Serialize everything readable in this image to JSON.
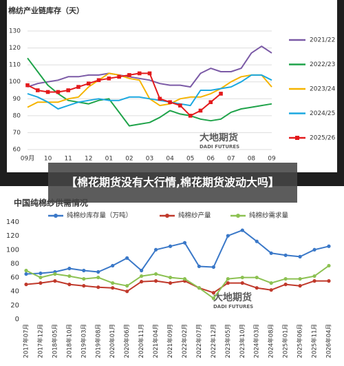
{
  "caption": "【棉花期货没有大行情,棉花期货波动大吗】",
  "chart_data": [
    {
      "type": "line",
      "title": "棉纺产业链库存（天）",
      "categories": [
        "09月",
        null,
        "10",
        null,
        "11",
        null,
        "12",
        null,
        "01",
        null,
        "02",
        null,
        "03",
        null,
        "04",
        null,
        "05",
        null,
        "06",
        null,
        "07",
        null,
        "08",
        null,
        "09"
      ],
      "series": [
        {
          "name": "2021/22",
          "color": "#7b5aa6",
          "values": [
            97,
            99,
            100,
            101,
            103,
            103,
            104,
            104,
            105,
            104,
            103,
            102,
            101,
            99,
            98,
            98,
            97,
            105,
            108,
            106,
            106,
            108,
            117,
            121,
            117
          ]
        },
        {
          "name": "2022/23",
          "color": "#1fa34a",
          "values": [
            114,
            106,
            98,
            93,
            89,
            88,
            87,
            89,
            90,
            82,
            74,
            75,
            76,
            79,
            83,
            81,
            80,
            78,
            77,
            78,
            82,
            84,
            85,
            86,
            87
          ]
        },
        {
          "name": "2023/24",
          "color": "#f5b400",
          "values": [
            85,
            88,
            88,
            88,
            90,
            91,
            97,
            101,
            105,
            104,
            102,
            101,
            90,
            86,
            87,
            90,
            91,
            91,
            93,
            96,
            100,
            103,
            104,
            104,
            97
          ]
        },
        {
          "name": "2024/25",
          "color": "#1ba8e0",
          "values": [
            93,
            91,
            88,
            84,
            86,
            88,
            89,
            90,
            89,
            89,
            91,
            91,
            90,
            89,
            88,
            87,
            86,
            95,
            95,
            96,
            97,
            100,
            104,
            104,
            101
          ]
        },
        {
          "name": "2025/26",
          "color": "#e31a1c",
          "marker": "square",
          "values": [
            98,
            95,
            94,
            94,
            95,
            97,
            99,
            101,
            102,
            103,
            104,
            105,
            105,
            90,
            88,
            86,
            80,
            83,
            88,
            93,
            null,
            null,
            null,
            null,
            null
          ]
        }
      ],
      "ylim": [
        60,
        130
      ],
      "yticks": [
        60,
        70,
        80,
        90,
        100,
        110,
        120,
        130
      ],
      "grid": true,
      "legend": "right",
      "watermark": [
        "大地期货",
        "DADI FUTURES"
      ]
    },
    {
      "type": "line",
      "title": "中国纯棉纱供需情况",
      "categories": [
        "2017年07月",
        "2017年12月",
        "2018年05月",
        "2018年10月",
        "2019年03月",
        "2019年08月",
        "2020年01月",
        "2020年06月",
        "2020年11月",
        "2021年04月",
        "2021年09月",
        "2022年02月",
        "2022年07月",
        "2022年12月",
        "2023年05月",
        "2023年10月",
        "2024年03月",
        "2024年08月",
        "2025年01月",
        "2025年06月",
        "2025年11月",
        "2026年04月"
      ],
      "series": [
        {
          "name": "纯棉纱库存量（万吨）",
          "color": "#3a78c8",
          "marker": "circle",
          "values": [
            65,
            66,
            68,
            73,
            70,
            68,
            77,
            88,
            70,
            100,
            105,
            110,
            76,
            75,
            120,
            128,
            112,
            95,
            92,
            90,
            100,
            105
          ]
        },
        {
          "name": "纯棉纱产量",
          "color": "#c0392b",
          "marker": "circle",
          "values": [
            50,
            52,
            55,
            50,
            48,
            46,
            45,
            40,
            54,
            55,
            52,
            55,
            45,
            38,
            52,
            52,
            45,
            42,
            50,
            48,
            55,
            55
          ]
        },
        {
          "name": "纯棉纱需求量",
          "color": "#8cc152",
          "marker": "circle",
          "values": [
            70,
            60,
            65,
            62,
            58,
            60,
            52,
            48,
            62,
            65,
            60,
            58,
            45,
            30,
            58,
            60,
            60,
            52,
            58,
            58,
            62,
            77
          ]
        }
      ],
      "ylim": [
        0,
        140
      ],
      "yticks": [
        0,
        20,
        40,
        60,
        80,
        100,
        120,
        140
      ],
      "grid": false,
      "legend": "top",
      "watermark": [
        "大地期货",
        "DADI FUTURES"
      ]
    }
  ]
}
